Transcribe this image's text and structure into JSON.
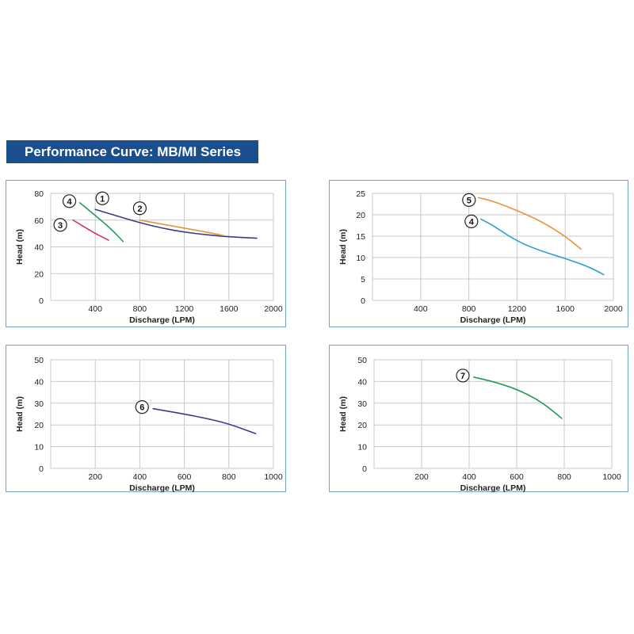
{
  "title": "Performance Curve: MB/MI Series",
  "chart_data": [
    {
      "type": "line",
      "xlabel": "Discharge (LPM)",
      "ylabel": "Head (m)",
      "xlim": [
        0,
        2000
      ],
      "ylim": [
        0,
        80
      ],
      "xticks": [
        "400",
        "800",
        "1200",
        "1600",
        "2000"
      ],
      "yticks": [
        "0",
        "20",
        "40",
        "60",
        "80"
      ],
      "series": [
        {
          "name": "1",
          "color": "#3b3a8c",
          "x": [
            400,
            600,
            800,
            1000,
            1200,
            1400,
            1600,
            1850
          ],
          "y": [
            68,
            63,
            58,
            54,
            51,
            49,
            47.5,
            46.5
          ]
        },
        {
          "name": "2",
          "color": "#e8923a",
          "x": [
            800,
            1000,
            1200,
            1400,
            1550
          ],
          "y": [
            60,
            57,
            54,
            51,
            48.5
          ]
        },
        {
          "name": "3",
          "color": "#d6336c",
          "x": [
            200,
            300,
            400,
            520
          ],
          "y": [
            60,
            55,
            50,
            45
          ]
        },
        {
          "name": "4",
          "color": "#1e9e57",
          "x": [
            260,
            350,
            450,
            560,
            650
          ],
          "y": [
            73,
            67,
            60,
            52,
            44
          ]
        }
      ]
    },
    {
      "type": "line",
      "xlabel": "Discharge (LPM)",
      "ylabel": "Head (m)",
      "xlim": [
        0,
        2000
      ],
      "ylim": [
        0,
        25
      ],
      "xticks": [
        "400",
        "800",
        "1200",
        "1600",
        "2000"
      ],
      "yticks": [
        "0",
        "5",
        "10",
        "15",
        "20",
        "25"
      ],
      "series": [
        {
          "name": "5",
          "color": "#e8923a",
          "x": [
            880,
            1000,
            1200,
            1400,
            1600,
            1730
          ],
          "y": [
            24,
            23.2,
            21,
            18.5,
            15,
            12
          ]
        },
        {
          "name": "4",
          "color": "#2b9bd3",
          "x": [
            900,
            1000,
            1200,
            1400,
            1600,
            1800,
            1920
          ],
          "y": [
            19,
            17.5,
            13.8,
            11.5,
            9.8,
            7.8,
            6
          ]
        }
      ]
    },
    {
      "type": "line",
      "xlabel": "Discharge (LPM)",
      "ylabel": "Head (m)",
      "xlim": [
        0,
        1000
      ],
      "ylim": [
        0,
        50
      ],
      "xticks": [
        "200",
        "400",
        "600",
        "800",
        "1000"
      ],
      "yticks": [
        "0",
        "10",
        "20",
        "30",
        "40",
        "50"
      ],
      "series": [
        {
          "name": "6",
          "color": "#3b3a8c",
          "x": [
            460,
            600,
            700,
            800,
            920
          ],
          "y": [
            27.5,
            25,
            23,
            20.5,
            16
          ]
        }
      ]
    },
    {
      "type": "line",
      "xlabel": "Discharge (LPM)",
      "ylabel": "Head (m)",
      "xlim": [
        0,
        1000
      ],
      "ylim": [
        0,
        50
      ],
      "xticks": [
        "200",
        "400",
        "600",
        "800",
        "1000"
      ],
      "yticks": [
        "0",
        "10",
        "20",
        "30",
        "40",
        "50"
      ],
      "series": [
        {
          "name": "7",
          "color": "#1e9e57",
          "x": [
            420,
            500,
            600,
            700,
            790
          ],
          "y": [
            42,
            40,
            36.5,
            31,
            23
          ]
        }
      ]
    }
  ]
}
